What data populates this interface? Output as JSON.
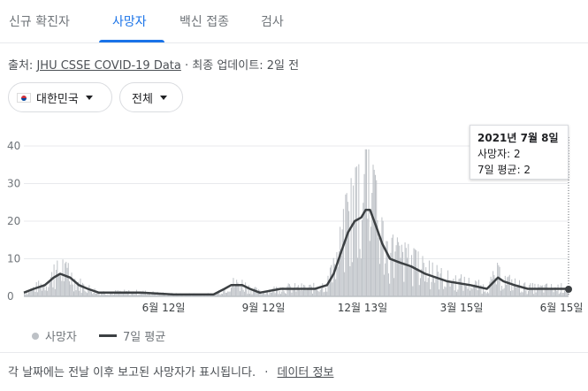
{
  "tabs": [
    {
      "label": "신규 확진자",
      "active": false
    },
    {
      "label": "사망자",
      "active": true
    },
    {
      "label": "백신 접종",
      "active": false
    },
    {
      "label": "검사",
      "active": false
    }
  ],
  "source": {
    "prefix": "출처:",
    "link": "JHU CSSE COVID-19 Data",
    "separator": "·",
    "updated": "최종 업데이트: 2일 전"
  },
  "filters": {
    "region": "대한민국",
    "scope": "전체"
  },
  "tooltip": {
    "date": "2021년 7월 8일",
    "deaths": "사망자: 2",
    "avg": "7일 평균: 2"
  },
  "legend": {
    "bars": "사망자",
    "line": "7일 평균"
  },
  "footer": {
    "note": "각 날짜에는 전날 이후 보고된 사망자가 표시됩니다.",
    "sep": "·",
    "link": "데이터 정보"
  },
  "colors": {
    "accent": "#1a73e8",
    "bars": "#bdc1c6",
    "line": "#3c4043"
  },
  "chart_data": {
    "type": "bar",
    "ylim": [
      0,
      40
    ],
    "yticks": [
      0,
      10,
      20,
      30,
      40
    ],
    "xticks": [
      "6월 12일",
      "9월 12일",
      "12월 13일",
      "3월 15일",
      "6월 15일"
    ],
    "start_date": "2020-03-01",
    "end_date": "2021-07-08",
    "series": [
      {
        "name": "사망자",
        "kind": "bar"
      },
      {
        "name": "7일 평균",
        "kind": "line",
        "points": [
          [
            "2020-03-01",
            1
          ],
          [
            "2020-03-10",
            2
          ],
          [
            "2020-03-20",
            3
          ],
          [
            "2020-03-28",
            5
          ],
          [
            "2020-04-03",
            6
          ],
          [
            "2020-04-12",
            5
          ],
          [
            "2020-04-20",
            3
          ],
          [
            "2020-04-28",
            2
          ],
          [
            "2020-05-08",
            1
          ],
          [
            "2020-06-15",
            1
          ],
          [
            "2020-07-15",
            0.5
          ],
          [
            "2020-08-20",
            0.5
          ],
          [
            "2020-08-30",
            2
          ],
          [
            "2020-09-05",
            3
          ],
          [
            "2020-09-15",
            3
          ],
          [
            "2020-09-22",
            2
          ],
          [
            "2020-10-01",
            1
          ],
          [
            "2020-10-20",
            2
          ],
          [
            "2020-11-05",
            2
          ],
          [
            "2020-11-20",
            2
          ],
          [
            "2020-12-01",
            3
          ],
          [
            "2020-12-07",
            6
          ],
          [
            "2020-12-14",
            12
          ],
          [
            "2020-12-20",
            17
          ],
          [
            "2020-12-26",
            20
          ],
          [
            "2021-01-01",
            21
          ],
          [
            "2021-01-05",
            23
          ],
          [
            "2021-01-09",
            23
          ],
          [
            "2021-01-14",
            19
          ],
          [
            "2021-01-20",
            14
          ],
          [
            "2021-01-27",
            10
          ],
          [
            "2021-02-05",
            9
          ],
          [
            "2021-02-15",
            8
          ],
          [
            "2021-02-28",
            6
          ],
          [
            "2021-03-20",
            4
          ],
          [
            "2021-04-10",
            3
          ],
          [
            "2021-04-25",
            2
          ],
          [
            "2021-05-05",
            5
          ],
          [
            "2021-05-10",
            4
          ],
          [
            "2021-05-20",
            3
          ],
          [
            "2021-06-01",
            2
          ],
          [
            "2021-06-20",
            2
          ],
          [
            "2021-07-08",
            2
          ]
        ]
      }
    ]
  }
}
